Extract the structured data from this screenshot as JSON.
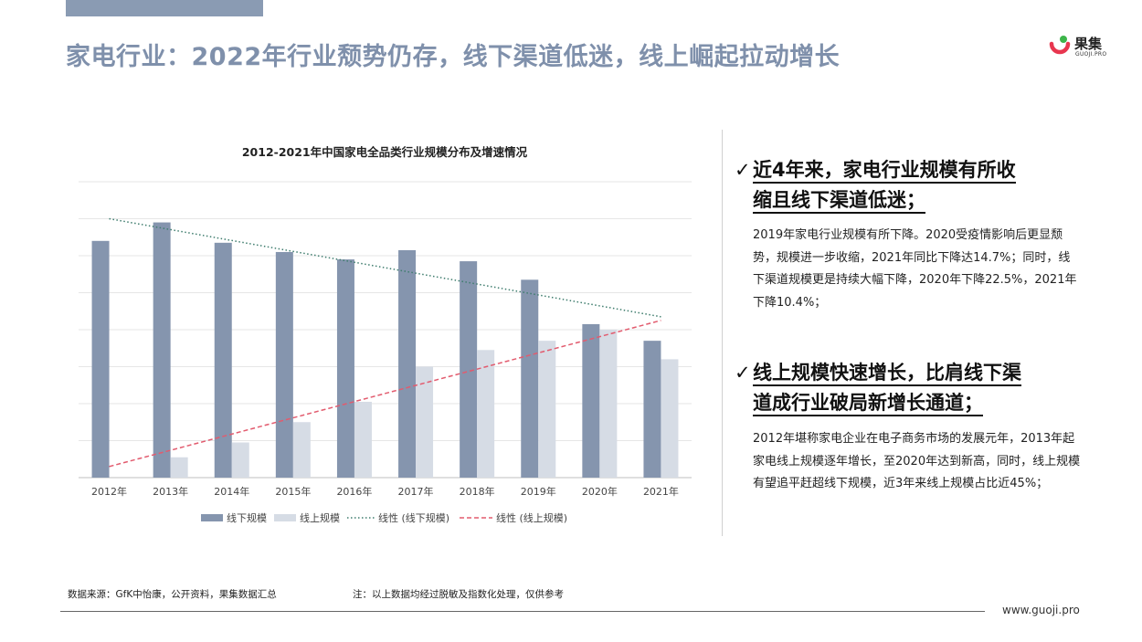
{
  "page": {
    "title": "家电行业：2022年行业颓势仍存，线下渠道低迷，线上崛起拉动增长"
  },
  "logo": {
    "name": "果集",
    "sub": "GUOJI.PRO"
  },
  "chart_data": {
    "type": "bar",
    "title": "2012-2021年中国家电全品类行业规模分布及增速情况",
    "categories": [
      "2012年",
      "2013年",
      "2014年",
      "2015年",
      "2016年",
      "2017年",
      "2018年",
      "2019年",
      "2020年",
      "2021年"
    ],
    "series": [
      {
        "name": "线下规模",
        "color": "#8595ae",
        "values": [
          64,
          69,
          63.5,
          61,
          59,
          61.5,
          58.5,
          53.5,
          41.5,
          37
        ]
      },
      {
        "name": "线上规模",
        "color": "#d6dce5",
        "values": [
          0,
          5.5,
          9.5,
          15,
          20.5,
          30,
          34.5,
          37,
          40,
          32
        ]
      }
    ],
    "trendlines": [
      {
        "name": "线性 (线下规模)",
        "color": "#3f7d6e",
        "style": "dotted",
        "start": 70,
        "end": 43.5
      },
      {
        "name": "线性 (线上规模)",
        "color": "#e25b6e",
        "style": "dashed",
        "start": 3,
        "end": 42.5
      }
    ],
    "ylim": [
      0,
      80
    ],
    "grid": true,
    "legend_position": "bottom"
  },
  "points": [
    {
      "check": "✓",
      "heading_lines": [
        "近4年来，家电行业规模有所收",
        "缩且线下渠道低迷；"
      ],
      "body": "2019年家电行业规模有所下降。2020受疫情影响后更显颓势，规模进一步收缩，2021年同比下降达14.7%；同时，线下渠道规模更是持续大幅下降，2020年下降22.5%，2021年下降10.4%；"
    },
    {
      "check": "✓",
      "heading_lines": [
        "线上规模快速增长，比肩线下渠",
        "道成行业破局新增长通道；"
      ],
      "body": "2012年堪称家电企业在电子商务市场的发展元年，2013年起家电线上规模逐年增长，至2020年达到新高，同时，线上规模有望追平赶超线下规模，近3年来线上规模占比近45%；"
    }
  ],
  "footer": {
    "source": "数据来源：GfK中怡康，公开资料，果集数据汇总",
    "note": "注：以上数据均经过脱敏及指数化处理，仅供参考",
    "url": "www.guoji.pro"
  }
}
